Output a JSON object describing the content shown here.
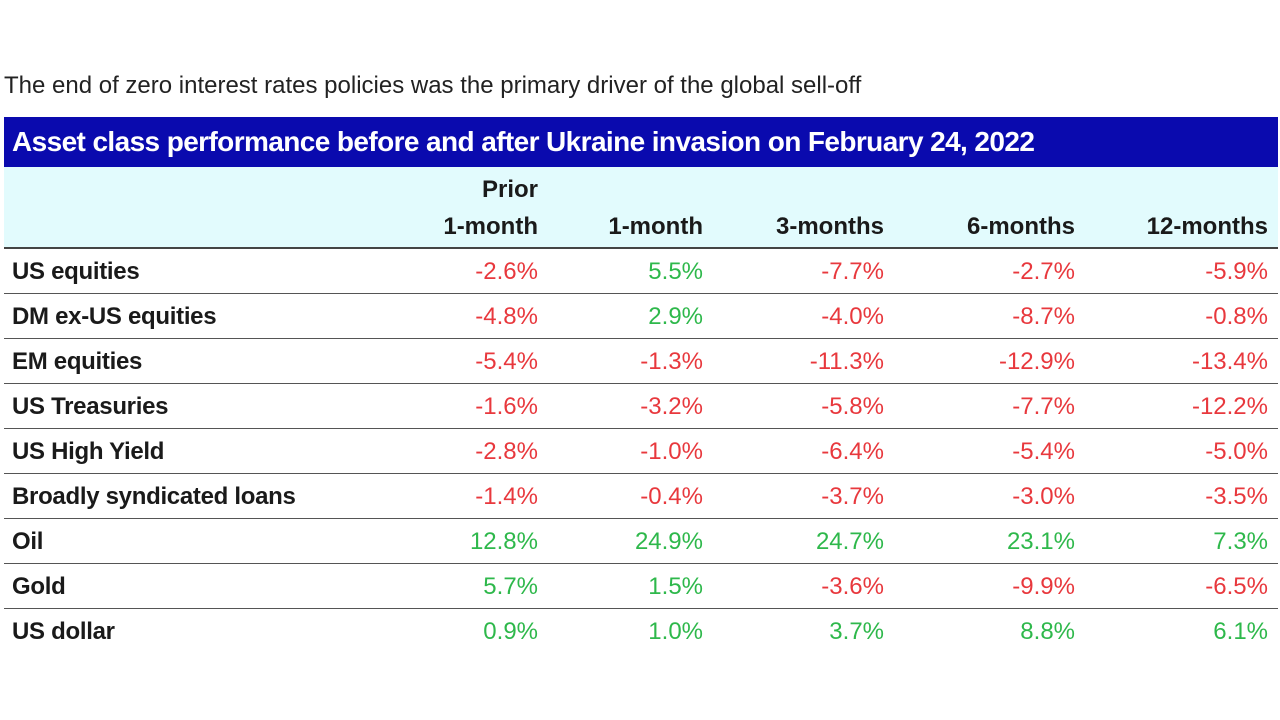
{
  "subtitle": "The end of zero interest rates policies was the primary driver of the global sell-off",
  "colors": {
    "title_bar": "#0a0aae",
    "header_bg": "#e2fbfd",
    "negative": "#e8383d",
    "positive": "#2eb84b"
  },
  "chart_data": {
    "type": "table",
    "title": "Asset class performance before and after Ukraine invasion on February 24, 2022",
    "columns": [
      {
        "line1": "Prior",
        "line2": "1-month"
      },
      {
        "line1": "",
        "line2": "1-month"
      },
      {
        "line1": "",
        "line2": "3-months"
      },
      {
        "line1": "",
        "line2": "6-months"
      },
      {
        "line1": "",
        "line2": "12-months"
      }
    ],
    "rows": [
      {
        "label": "US equities",
        "values": [
          "-2.6%",
          "5.5%",
          "-7.7%",
          "-2.7%",
          "-5.9%"
        ]
      },
      {
        "label": "DM ex-US equities",
        "values": [
          "-4.8%",
          "2.9%",
          "-4.0%",
          "-8.7%",
          "-0.8%"
        ]
      },
      {
        "label": "EM equities",
        "values": [
          "-5.4%",
          "-1.3%",
          "-11.3%",
          "-12.9%",
          "-13.4%"
        ]
      },
      {
        "label": "US Treasuries",
        "values": [
          "-1.6%",
          "-3.2%",
          "-5.8%",
          "-7.7%",
          "-12.2%"
        ]
      },
      {
        "label": "US High Yield",
        "values": [
          "-2.8%",
          "-1.0%",
          "-6.4%",
          "-5.4%",
          "-5.0%"
        ]
      },
      {
        "label": "Broadly syndicated loans",
        "values": [
          "-1.4%",
          "-0.4%",
          "-3.7%",
          "-3.0%",
          "-3.5%"
        ]
      },
      {
        "label": "Oil",
        "values": [
          "12.8%",
          "24.9%",
          "24.7%",
          "23.1%",
          "7.3%"
        ]
      },
      {
        "label": "Gold",
        "values": [
          "5.7%",
          "1.5%",
          "-3.6%",
          "-9.9%",
          "-6.5%"
        ]
      },
      {
        "label": "US dollar",
        "values": [
          "0.9%",
          "1.0%",
          "3.7%",
          "8.8%",
          "6.1%"
        ]
      }
    ]
  }
}
